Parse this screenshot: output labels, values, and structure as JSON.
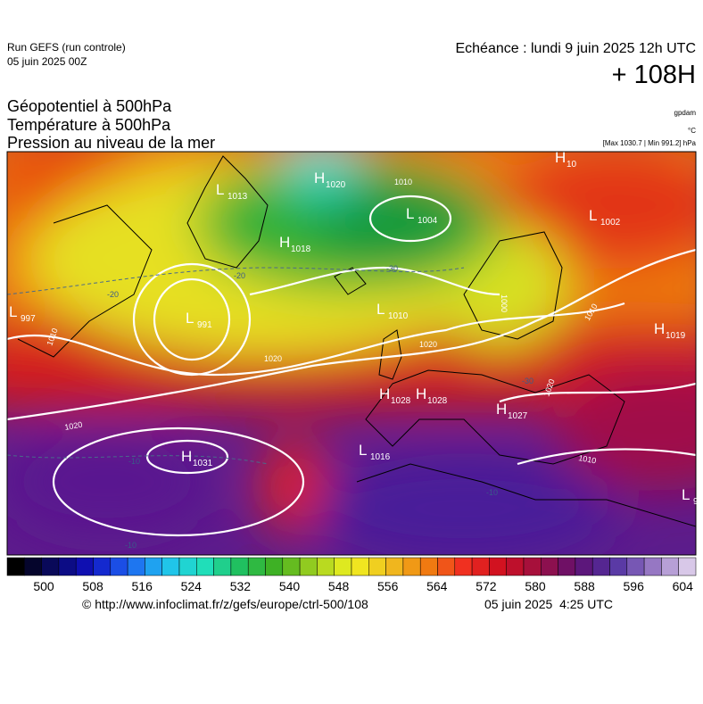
{
  "header": {
    "run": "Run GEFS (run controle)",
    "run_date": "05 juin 2025 00Z",
    "valid": "Echéance : lundi 9 juin 2025 12h UTC",
    "lead": "+ 108H",
    "fields": [
      "Géopotentiel à 500hPa",
      "Température à 500hPa",
      "Pression au niveau de la mer"
    ],
    "units": [
      "gpdam",
      "°C",
      "[Max 1030.7 | Min 991.2] hPa"
    ]
  },
  "map": {
    "centers": [
      {
        "kind": "H",
        "value": "1020"
      },
      {
        "kind": "L",
        "value": "1013"
      },
      {
        "kind": "L",
        "value": "1004"
      },
      {
        "kind": "H",
        "value": "1018"
      },
      {
        "kind": "H",
        "value": "10"
      },
      {
        "kind": "L",
        "value": "1002"
      },
      {
        "kind": "L",
        "value": "997"
      },
      {
        "kind": "L",
        "value": "991"
      },
      {
        "kind": "L",
        "value": "1010"
      },
      {
        "kind": "H",
        "value": "1019"
      },
      {
        "kind": "H",
        "value": "1028"
      },
      {
        "kind": "H",
        "value": "1028"
      },
      {
        "kind": "H",
        "value": "1027"
      },
      {
        "kind": "L",
        "value": "1016"
      },
      {
        "kind": "H",
        "value": "1031"
      },
      {
        "kind": "L",
        "value": "9"
      }
    ],
    "isobar_labels": [
      "1010",
      "1010",
      "1020",
      "1020",
      "1020",
      "1010",
      "1010",
      "1000",
      "1020"
    ],
    "temperature_labels": [
      "-20",
      "-30",
      "-20",
      "-10",
      "-10",
      "-30",
      "-10"
    ]
  },
  "colorbar": {
    "ticks": [
      500,
      508,
      516,
      524,
      532,
      540,
      548,
      556,
      564,
      572,
      580,
      588,
      596,
      604
    ]
  },
  "footer": {
    "source": "© http://www.infoclimat.fr/z/gefs/europe/ctrl-500/108",
    "issued": "05 juin 2025  4:25 UTC"
  }
}
